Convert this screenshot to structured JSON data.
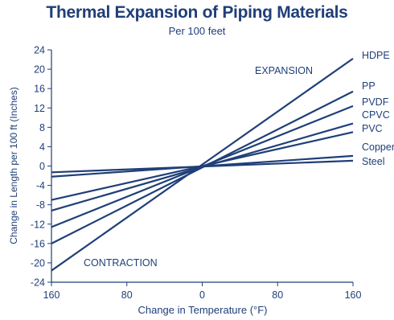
{
  "chart_data": {
    "type": "line",
    "title": "Thermal Expansion of Piping Materials",
    "subtitle": "Per 100 feet",
    "xlabel": "Change in Temperature (°F)",
    "ylabel": "Change in Length per 100 ft (Inches)",
    "x_ticks": [
      160,
      80,
      0,
      80,
      160
    ],
    "x_tick_positions": [
      -160,
      -80,
      0,
      80,
      160
    ],
    "xlim": [
      -160,
      160
    ],
    "ylim": [
      -24,
      24
    ],
    "y_ticks": [
      24,
      20,
      16,
      12,
      8,
      4,
      0,
      -4,
      -8,
      -12,
      -16,
      -20,
      -24
    ],
    "grid": false,
    "annotations": {
      "expansion": "EXPANSION",
      "contraction": "CONTRACTION"
    },
    "series": [
      {
        "name": "HDPE",
        "x": [
          -160,
          160
        ],
        "y": [
          -21.6,
          22.2
        ]
      },
      {
        "name": "PP",
        "x": [
          -160,
          160
        ],
        "y": [
          -16.0,
          15.4
        ]
      },
      {
        "name": "PVDF",
        "x": [
          -160,
          160
        ],
        "y": [
          -12.6,
          12.4
        ]
      },
      {
        "name": "CPVC",
        "x": [
          -160,
          160
        ],
        "y": [
          -9.2,
          8.8
        ]
      },
      {
        "name": "PVC",
        "x": [
          -160,
          160
        ],
        "y": [
          -7.0,
          7.0
        ]
      },
      {
        "name": "Copper",
        "x": [
          -160,
          160
        ],
        "y": [
          -2.2,
          2.1
        ]
      },
      {
        "name": "Steel",
        "x": [
          -160,
          160
        ],
        "y": [
          -1.3,
          1.1
        ]
      }
    ],
    "colors": {
      "line": "#1f3f78",
      "text": "#1f3f78",
      "axis": "#1f3f78"
    }
  }
}
